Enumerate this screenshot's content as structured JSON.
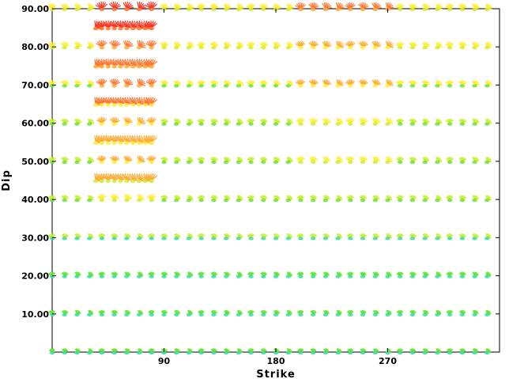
{
  "chart_data": {
    "type": "scatter",
    "xlabel": "Strike",
    "ylabel": "Dip",
    "xlim": [
      0,
      360
    ],
    "ylim": [
      0,
      90
    ],
    "x_ticks": [
      {
        "value": 90,
        "label": "90"
      },
      {
        "value": 180,
        "label": "180"
      },
      {
        "value": 270,
        "label": "270"
      }
    ],
    "y_ticks": [
      {
        "value": 10,
        "label": "10.00"
      },
      {
        "value": 20,
        "label": "20.00"
      },
      {
        "value": 30,
        "label": "30.00"
      },
      {
        "value": 40,
        "label": "40.00"
      },
      {
        "value": 50,
        "label": "50.00"
      },
      {
        "value": 60,
        "label": "60.00"
      },
      {
        "value": 70,
        "label": "70.00"
      },
      {
        "value": 80,
        "label": "80.00"
      },
      {
        "value": 90,
        "label": "90.00"
      }
    ],
    "grid": false,
    "strike_step": 10,
    "dip_rows": [
      0,
      10,
      20,
      30,
      40,
      50,
      60,
      70,
      80,
      90
    ],
    "intermediate_dips": [
      45,
      55,
      65,
      75,
      85
    ],
    "intermediate_strike_range": [
      35,
      80
    ],
    "intermediate_strike_step": 5,
    "peak_region": {
      "strike": [
        35,
        80
      ],
      "dip": [
        40,
        90
      ]
    },
    "secondary_peak": {
      "strike": [
        200,
        270
      ],
      "dip": [
        50,
        90
      ]
    },
    "color_scale": [
      "#33e0a0",
      "#66e633",
      "#ccee33",
      "#ffee33",
      "#ffaa33",
      "#ff7733",
      "#ff3322"
    ]
  }
}
